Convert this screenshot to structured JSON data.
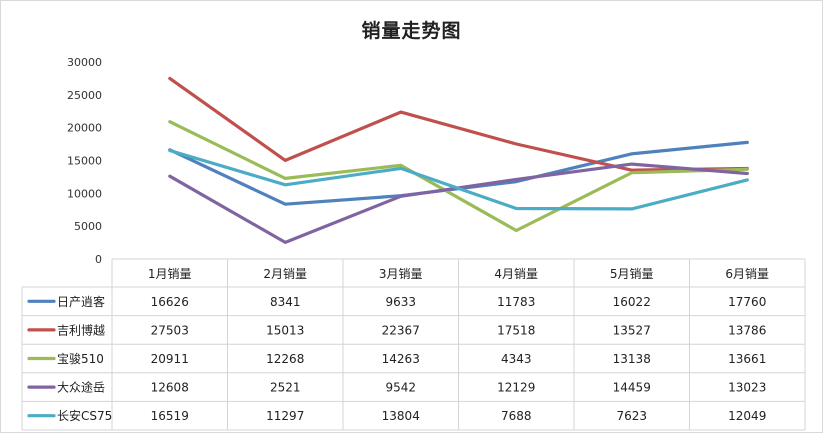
{
  "chart_data": {
    "type": "line",
    "title": "销量走势图",
    "xlabel": "",
    "ylabel": "",
    "ylim": [
      0,
      30000
    ],
    "yticks": [
      0,
      5000,
      10000,
      15000,
      20000,
      25000,
      30000
    ],
    "grid": false,
    "legend": "data-table-below",
    "categories": [
      "1月销量",
      "2月销量",
      "3月销量",
      "4月销量",
      "5月销量",
      "6月销量"
    ],
    "series": [
      {
        "name": "日产逍客",
        "color": "#4f81bd",
        "values": [
          16626,
          8341,
          9633,
          11783,
          16022,
          17760
        ]
      },
      {
        "name": "吉利博越",
        "color": "#c0504d",
        "values": [
          27503,
          15013,
          22367,
          17518,
          13527,
          13786
        ]
      },
      {
        "name": "宝骏510",
        "color": "#9bbb59",
        "values": [
          20911,
          12268,
          14263,
          4343,
          13138,
          13661
        ]
      },
      {
        "name": "大众途岳",
        "color": "#8064a2",
        "values": [
          12608,
          2521,
          9542,
          12129,
          14459,
          13023
        ]
      },
      {
        "name": "长安CS75",
        "color": "#4bacc6",
        "values": [
          16519,
          11297,
          13804,
          7688,
          7623,
          12049
        ]
      }
    ]
  }
}
